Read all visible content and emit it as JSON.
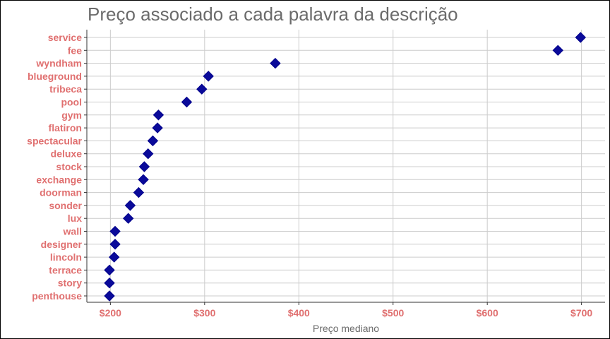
{
  "chart_data": {
    "type": "scatter",
    "title": "Preço associado a cada palavra da descrição",
    "xlabel": "Preço mediano",
    "ylabel": "",
    "categories": [
      "service",
      "fee",
      "wyndham",
      "blueground",
      "tribeca",
      "pool",
      "gym",
      "flatiron",
      "spectacular",
      "deluxe",
      "stock",
      "exchange",
      "doorman",
      "sonder",
      "lux",
      "wall",
      "designer",
      "lincoln",
      "terrace",
      "story",
      "penthouse"
    ],
    "values": [
      699,
      675,
      375,
      304,
      297,
      281,
      251,
      250,
      245,
      240,
      236,
      235,
      230,
      221,
      219,
      205,
      205,
      204,
      199,
      199,
      199
    ],
    "xlim": [
      175,
      725
    ],
    "xticks": [
      200,
      300,
      400,
      500,
      600,
      700
    ],
    "xtick_labels": [
      "$200",
      "$300",
      "$400",
      "$500",
      "$600",
      "$700"
    ],
    "grid": true,
    "colors": {
      "marker": "#00008b",
      "marker_fill": "#0a0a9a",
      "tick_label": "#e07070",
      "grid": "#cccccc",
      "axis": "#333333",
      "title": "#6b6b6b",
      "xlabel": "#6b6b6b"
    },
    "marker_shape": "diamond"
  }
}
